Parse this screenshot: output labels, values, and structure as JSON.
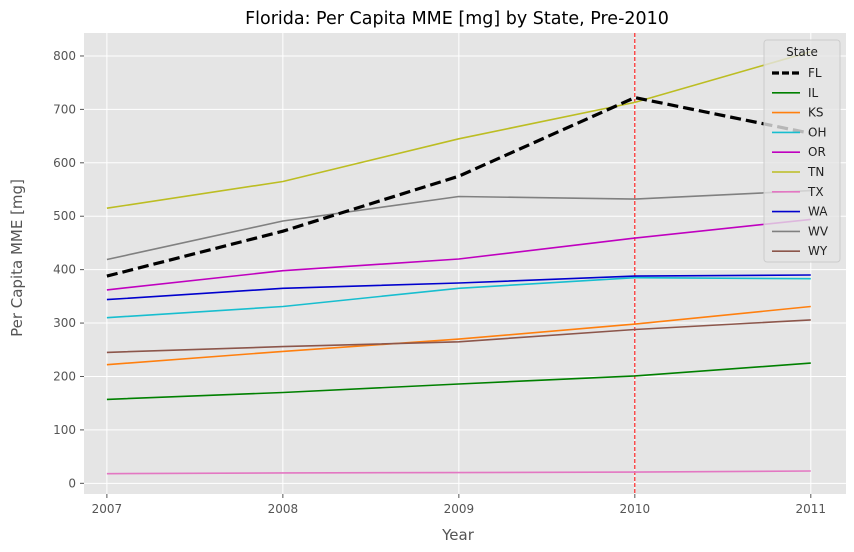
{
  "chart_data": {
    "type": "line",
    "title": "Florida: Per Capita MME [mg] by State, Pre-2010",
    "xlabel": "Year",
    "ylabel": "Per Capita MME [mg]",
    "x": [
      2007,
      2008,
      2009,
      2010,
      2011
    ],
    "x_tick_labels": [
      "2007",
      "2008",
      "2009",
      "2010",
      "2011"
    ],
    "y_ticks": [
      0,
      100,
      200,
      300,
      400,
      500,
      600,
      700,
      800
    ],
    "xlim": [
      2006.87,
      2011.2
    ],
    "ylim": [
      -20,
      843
    ],
    "grid": true,
    "background": "#e5e5e5",
    "reference_line": {
      "x": 2010,
      "color": "#ff0000",
      "style": "dashed"
    },
    "legend": {
      "title": "State",
      "placement": "top-right"
    },
    "series": [
      {
        "name": "FL",
        "color": "#000000",
        "style": "dashed",
        "values": [
          388,
          472,
          575,
          722,
          655
        ]
      },
      {
        "name": "IL",
        "color": "#008000",
        "style": "solid",
        "values": [
          157,
          170,
          186,
          201,
          225
        ]
      },
      {
        "name": "KS",
        "color": "#ff7f0e",
        "style": "solid",
        "values": [
          222,
          247,
          270,
          298,
          331
        ]
      },
      {
        "name": "OH",
        "color": "#17becf",
        "style": "solid",
        "values": [
          310,
          331,
          365,
          385,
          383
        ]
      },
      {
        "name": "OR",
        "color": "#bf00bf",
        "style": "solid",
        "values": [
          362,
          398,
          420,
          459,
          494
        ]
      },
      {
        "name": "TN",
        "color": "#bcbd22",
        "style": "solid",
        "values": [
          515,
          565,
          645,
          713,
          808
        ]
      },
      {
        "name": "TX",
        "color": "#e377c2",
        "style": "solid",
        "values": [
          18,
          19.5,
          20,
          21,
          23
        ]
      },
      {
        "name": "WA",
        "color": "#0000cd",
        "style": "solid",
        "values": [
          344,
          365,
          375,
          388,
          390
        ]
      },
      {
        "name": "WV",
        "color": "#808080",
        "style": "solid",
        "values": [
          419,
          491,
          537,
          532,
          548
        ]
      },
      {
        "name": "WY",
        "color": "#8c564b",
        "style": "solid",
        "values": [
          245,
          256,
          265,
          288,
          306
        ]
      }
    ]
  }
}
